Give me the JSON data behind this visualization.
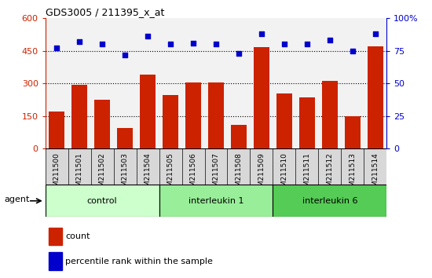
{
  "title": "GDS3005 / 211395_x_at",
  "samples": [
    "GSM211500",
    "GSM211501",
    "GSM211502",
    "GSM211503",
    "GSM211504",
    "GSM211505",
    "GSM211506",
    "GSM211507",
    "GSM211508",
    "GSM211509",
    "GSM211510",
    "GSM211511",
    "GSM211512",
    "GSM211513",
    "GSM211514"
  ],
  "counts": [
    170,
    295,
    225,
    95,
    340,
    245,
    305,
    305,
    110,
    465,
    255,
    235,
    310,
    148,
    470
  ],
  "percentiles": [
    77,
    82,
    80,
    72,
    86,
    80,
    81,
    80,
    73,
    88,
    80,
    80,
    83,
    75,
    88
  ],
  "groups": [
    {
      "label": "control",
      "start": 0,
      "end": 5,
      "color": "#ccffcc"
    },
    {
      "label": "interleukin 1",
      "start": 5,
      "end": 10,
      "color": "#99ee99"
    },
    {
      "label": "interleukin 6",
      "start": 10,
      "end": 15,
      "color": "#55cc55"
    }
  ],
  "bar_color": "#cc2200",
  "dot_color": "#0000cc",
  "ylim_left": [
    0,
    600
  ],
  "ylim_right": [
    0,
    100
  ],
  "yticks_left": [
    0,
    150,
    300,
    450,
    600
  ],
  "yticks_right": [
    0,
    25,
    50,
    75,
    100
  ],
  "grid_values": [
    150,
    300,
    450
  ],
  "agent_label": "agent",
  "legend_count": "count",
  "legend_pct": "percentile rank within the sample",
  "plot_bg": "#f2f2f2",
  "xticklabel_bg": "#d8d8d8"
}
